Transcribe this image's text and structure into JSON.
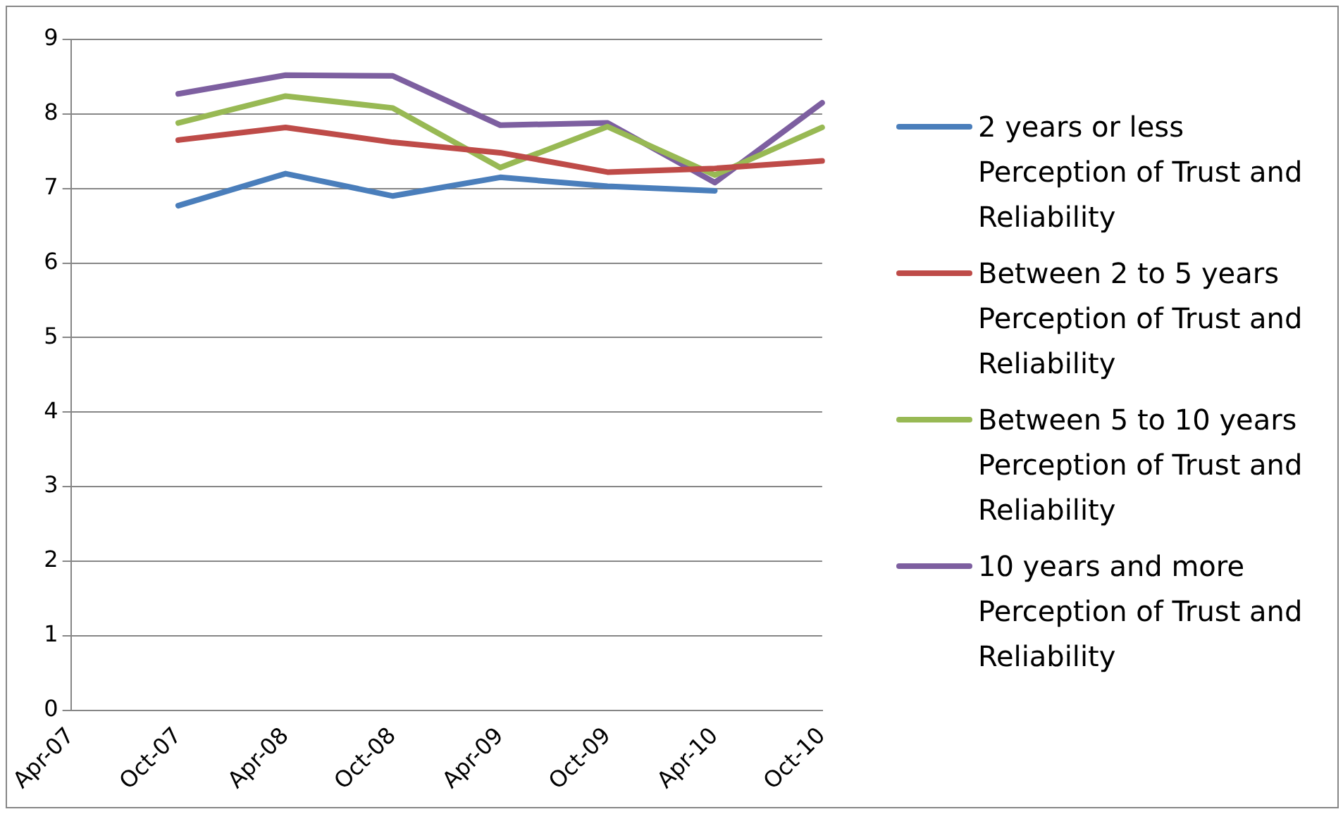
{
  "chart_data": {
    "type": "line",
    "categories": [
      "Apr-07",
      "Oct-07",
      "Apr-08",
      "Oct-08",
      "Apr-09",
      "Oct-09",
      "Apr-10",
      "Oct-10"
    ],
    "series": [
      {
        "name": "2 years or less Perception of Trust and Reliability",
        "color": "#4a7ebb",
        "values": [
          null,
          6.77,
          7.2,
          6.9,
          7.15,
          7.03,
          6.97,
          null
        ]
      },
      {
        "name": "Between 2 to 5 years Perception of Trust and Reliability",
        "color": "#be4b48",
        "values": [
          null,
          7.65,
          7.82,
          7.62,
          7.48,
          7.22,
          7.27,
          7.37
        ]
      },
      {
        "name": "Between 5 to 10 years Perception of Trust and Reliability",
        "color": "#98b954",
        "values": [
          null,
          7.88,
          8.24,
          8.08,
          7.28,
          7.83,
          7.18,
          7.82
        ]
      },
      {
        "name": "10 years and more Perception of Trust and Reliability",
        "color": "#7d5fa0",
        "values": [
          null,
          8.27,
          8.52,
          8.51,
          7.85,
          7.88,
          7.08,
          8.15
        ]
      }
    ],
    "ylim": [
      0,
      9
    ],
    "yticks": [
      0,
      1,
      2,
      3,
      4,
      5,
      6,
      7,
      8,
      9
    ],
    "grid": "y",
    "legend": "right",
    "marker": "none",
    "line_style": "solid"
  }
}
